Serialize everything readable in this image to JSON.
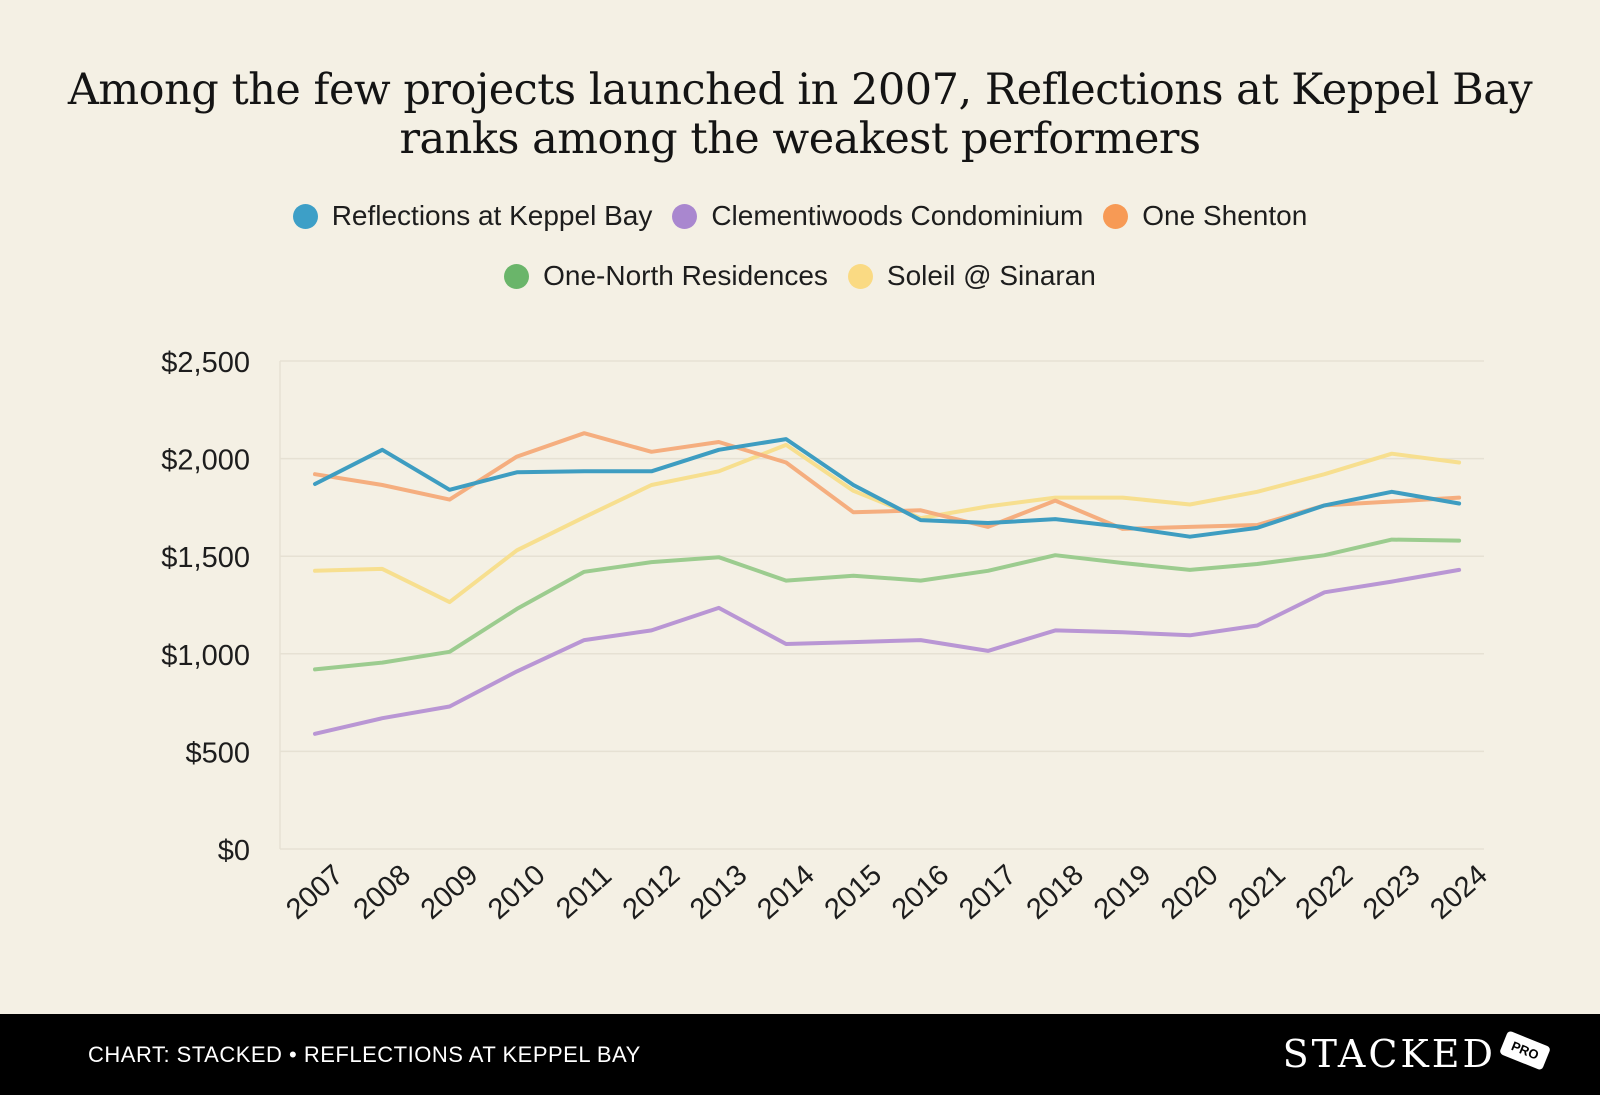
{
  "chart_data": {
    "type": "line",
    "title_line1": "Among the few projects launched in 2007, Reflections at Keppel Bay",
    "title_line2": "ranks among the weakest performers",
    "xlabel": "",
    "ylabel": "",
    "ylim": [
      0,
      2500
    ],
    "yticks": [
      0,
      500,
      1000,
      1500,
      2000,
      2500
    ],
    "ytick_labels": [
      "$0",
      "$500",
      "$1,000",
      "$1,500",
      "$2,000",
      "$2,500"
    ],
    "grid": true,
    "categories": [
      "2007",
      "2008",
      "2009",
      "2010",
      "2011",
      "2012",
      "2013",
      "2014",
      "2015",
      "2016",
      "2017",
      "2018",
      "2019",
      "2020",
      "2021",
      "2022",
      "2023",
      "2024"
    ],
    "series": [
      {
        "name": "Clementiwoods Condominium",
        "color": "#b996d4",
        "legend_color": "#a987cf",
        "values": [
          590,
          670,
          730,
          910,
          1070,
          1120,
          1235,
          1050,
          1060,
          1070,
          1015,
          1120,
          1110,
          1095,
          1145,
          1315,
          1370,
          1430
        ]
      },
      {
        "name": "One-North Residences",
        "color": "#9ccc8f",
        "legend_color": "#6ab56a",
        "values": [
          920,
          955,
          1010,
          1230,
          1420,
          1470,
          1495,
          1375,
          1400,
          1375,
          1425,
          1505,
          1465,
          1430,
          1460,
          1505,
          1585,
          1580
        ]
      },
      {
        "name": "Soleil @ Sinaran",
        "color": "#f7df8f",
        "legend_color": "#fada83",
        "values": [
          1425,
          1435,
          1265,
          1530,
          1700,
          1865,
          1935,
          2070,
          1835,
          1695,
          1755,
          1800,
          1800,
          1765,
          1830,
          1920,
          2025,
          1980
        ]
      },
      {
        "name": "One Shenton",
        "color": "#f5ae7f",
        "legend_color": "#f79a55",
        "values": [
          1920,
          1865,
          1790,
          2010,
          2130,
          2035,
          2085,
          1980,
          1725,
          1735,
          1650,
          1785,
          1640,
          1650,
          1660,
          1760,
          1780,
          1800
        ]
      },
      {
        "name": "Reflections at Keppel Bay",
        "color": "#3e9dc1",
        "legend_color": "#3d9fc7",
        "values": [
          1870,
          2045,
          1840,
          1930,
          1935,
          1935,
          2045,
          2100,
          1865,
          1685,
          1670,
          1690,
          1650,
          1600,
          1645,
          1760,
          1830,
          1770
        ]
      }
    ],
    "legend_rows": [
      [
        "Reflections at Keppel Bay",
        "Clementiwoods Condominium",
        "One Shenton"
      ],
      [
        "One-North Residences",
        "Soleil @ Sinaran"
      ]
    ],
    "legend_placement": "top-center"
  },
  "footer": {
    "source": "CHART: STACKED • REFLECTIONS AT KEPPEL BAY",
    "brand": "STACKED",
    "badge": "PRO"
  }
}
